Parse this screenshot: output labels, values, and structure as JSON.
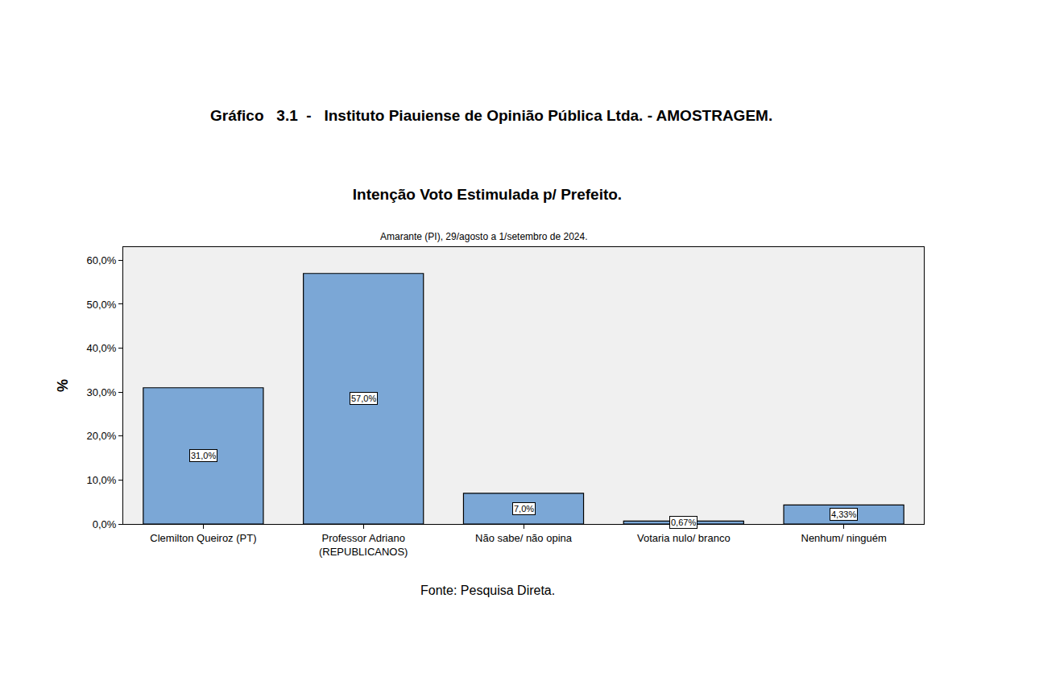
{
  "header": "Gráfico   3.1  -   Instituto Piauiense de Opinião Pública Ltda. - AMOSTRAGEM.",
  "chart_data": {
    "type": "bar",
    "title": "Intenção Voto Estimulada p/ Prefeito.",
    "subtitle": "Amarante (PI), 29/agosto a 1/setembro de 2024.",
    "y_label": "%",
    "annotations": [
      "Fonte: Pesquisa Direta."
    ],
    "categories": [
      "Clemilton Queiroz (PT)",
      "Professor Adriano (REPUBLICANOS)",
      "Não sabe/ não opina",
      "Votaria nulo/ branco",
      "Nenhum/ ninguém"
    ],
    "values": [
      31.0,
      57.0,
      7.0,
      0.67,
      4.33
    ],
    "value_labels": [
      "31,0%",
      "57,0%",
      "7,0%",
      "0,67%",
      "4,33%"
    ],
    "data_labels": true,
    "color": "#7ba7d6",
    "ylim": [
      0,
      63
    ],
    "yticks": [
      {
        "value": 0,
        "label": "0,0%"
      },
      {
        "value": 10,
        "label": "10,0%"
      },
      {
        "value": 20,
        "label": "20,0%"
      },
      {
        "value": 30,
        "label": "30,0%"
      },
      {
        "value": 40,
        "label": "40,0%"
      },
      {
        "value": 50,
        "label": "50,0%"
      },
      {
        "value": 60,
        "label": "60,0%"
      }
    ],
    "grid": false
  }
}
